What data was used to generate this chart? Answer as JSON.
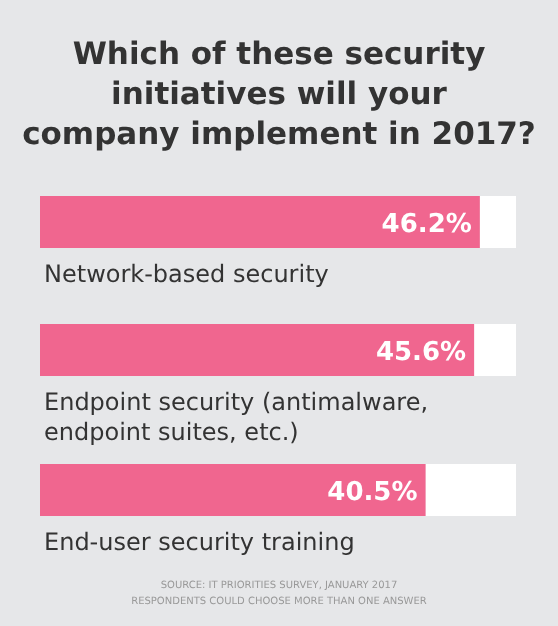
{
  "chart_data": {
    "type": "bar",
    "orientation": "horizontal",
    "title": "Which of these security initiatives will your company implement in 2017?",
    "categories": [
      "Network-based security",
      "Endpoint security (antimalware, endpoint suites, etc.)",
      "End-user security training"
    ],
    "values": [
      46.2,
      45.6,
      40.5
    ],
    "value_labels": [
      "46.2%",
      "45.6%",
      "40.5%"
    ],
    "color": "#f0668f",
    "xlim": [
      0,
      50
    ],
    "annotations": [
      "SOURCE: IT PRIORITIES SURVEY, JANUARY 2017",
      "RESPONDENTS COULD CHOOSE MORE THAN ONE ANSWER"
    ]
  }
}
